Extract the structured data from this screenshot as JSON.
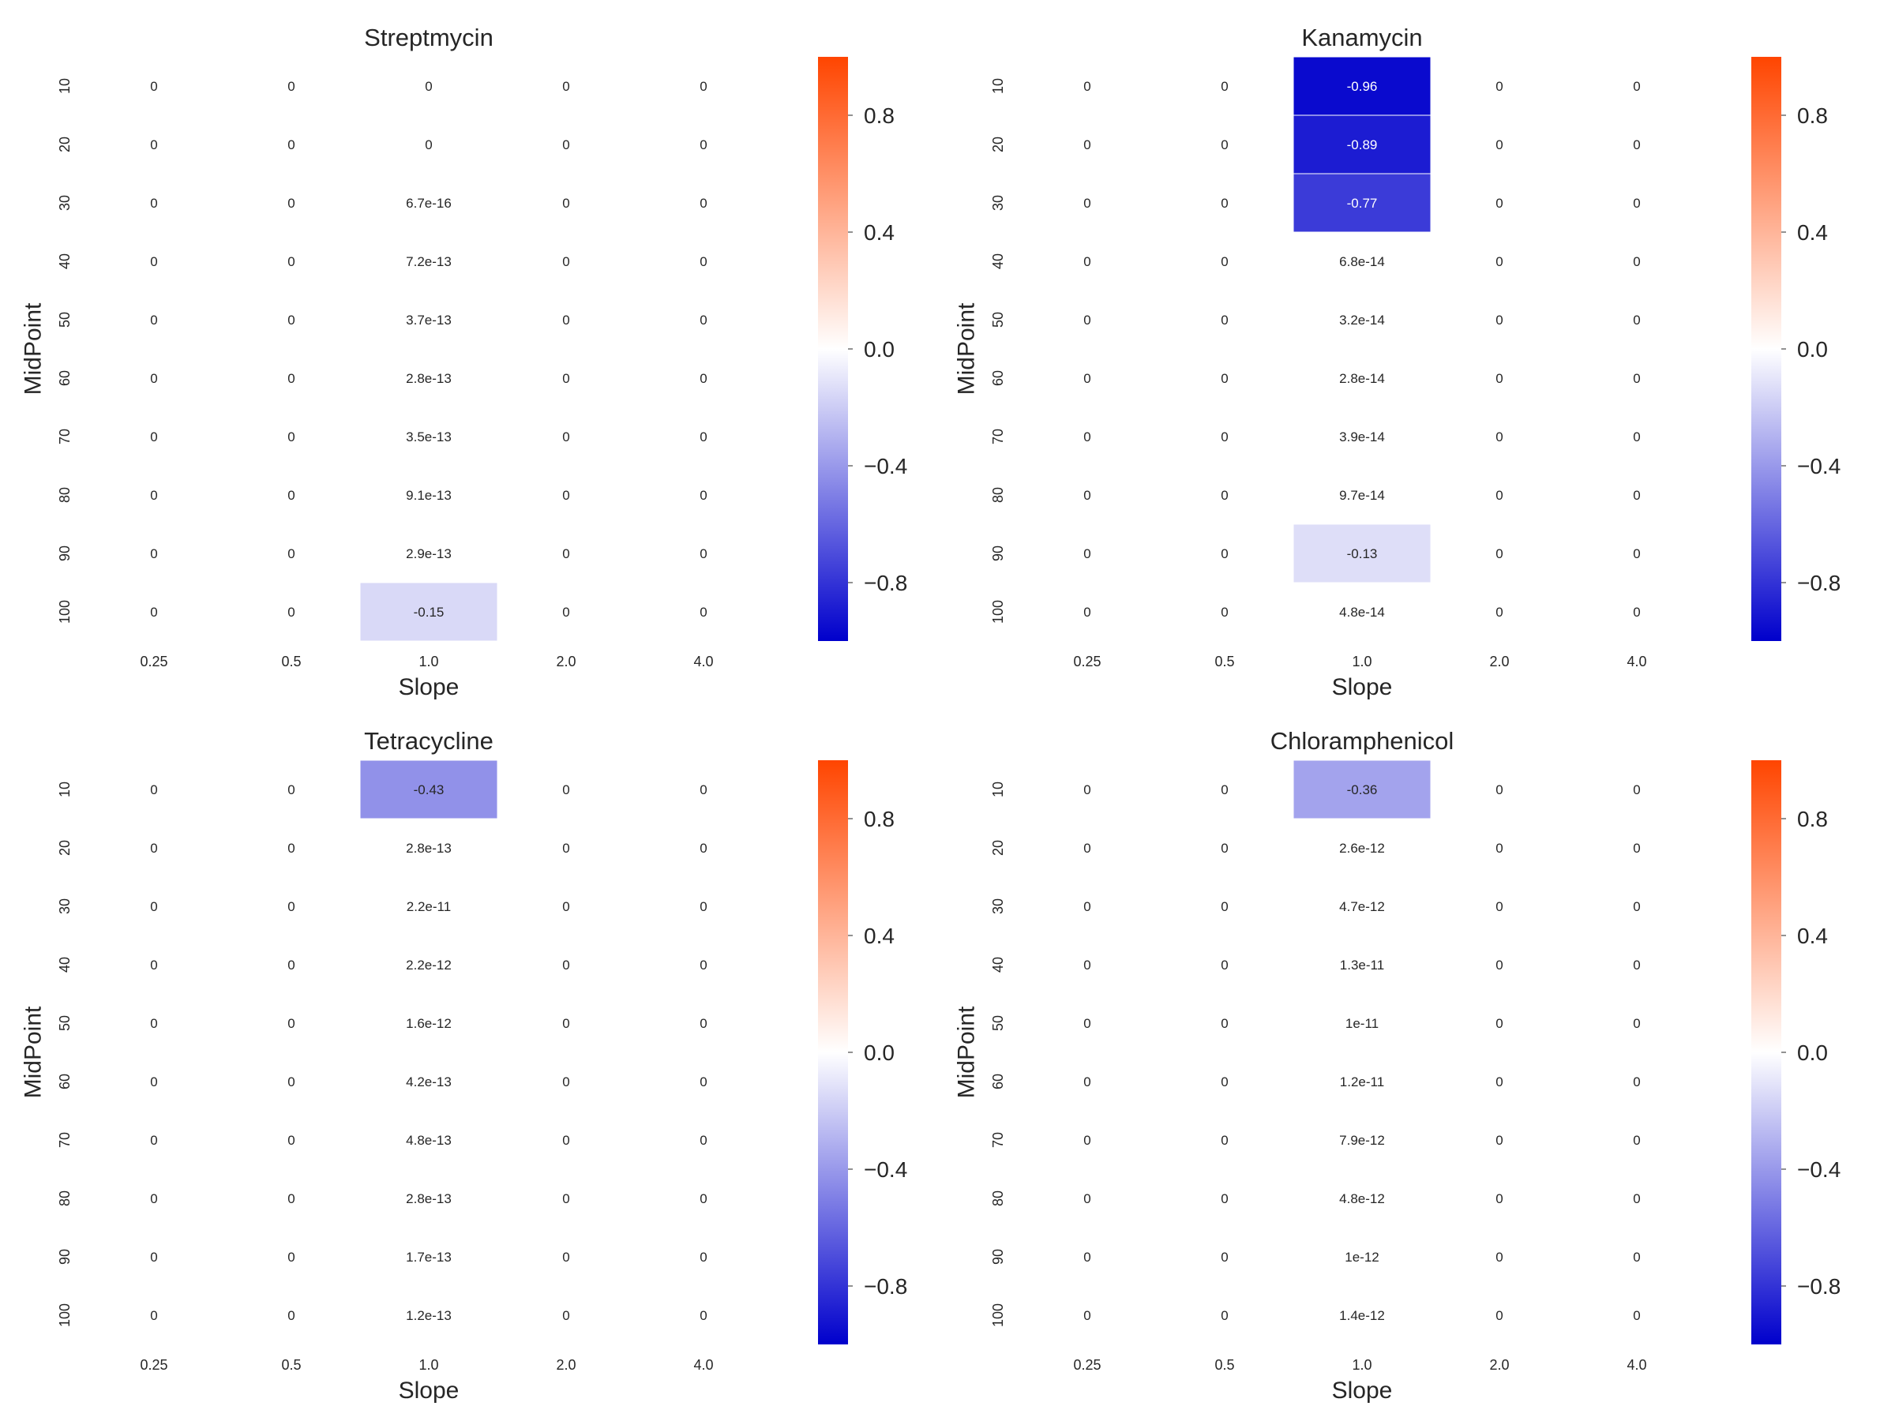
{
  "chart_data": [
    {
      "type": "heatmap",
      "title": "Streptmycin",
      "xlabel": "Slope",
      "ylabel": "MidPoint",
      "x_categories": [
        "0.25",
        "0.5",
        "1.0",
        "2.0",
        "4.0"
      ],
      "y_categories": [
        "10",
        "20",
        "30",
        "40",
        "50",
        "60",
        "70",
        "80",
        "90",
        "100"
      ],
      "values": [
        [
          0,
          0,
          0,
          0,
          0
        ],
        [
          0,
          0,
          0,
          0,
          0
        ],
        [
          0,
          0,
          6.7e-16,
          0,
          0
        ],
        [
          0,
          0,
          7.2e-13,
          0,
          0
        ],
        [
          0,
          0,
          3.7e-13,
          0,
          0
        ],
        [
          0,
          0,
          2.8e-13,
          0,
          0
        ],
        [
          0,
          0,
          3.5e-13,
          0,
          0
        ],
        [
          0,
          0,
          9.1e-13,
          0,
          0
        ],
        [
          0,
          0,
          2.9e-13,
          0,
          0
        ],
        [
          0,
          0,
          -0.15,
          0,
          0
        ]
      ],
      "annotations": [
        [
          "0",
          "0",
          "0",
          "0",
          "0"
        ],
        [
          "0",
          "0",
          "0",
          "0",
          "0"
        ],
        [
          "0",
          "0",
          "6.7e-16",
          "0",
          "0"
        ],
        [
          "0",
          "0",
          "7.2e-13",
          "0",
          "0"
        ],
        [
          "0",
          "0",
          "3.7e-13",
          "0",
          "0"
        ],
        [
          "0",
          "0",
          "2.8e-13",
          "0",
          "0"
        ],
        [
          "0",
          "0",
          "3.5e-13",
          "0",
          "0"
        ],
        [
          "0",
          "0",
          "9.1e-13",
          "0",
          "0"
        ],
        [
          "0",
          "0",
          "2.9e-13",
          "0",
          "0"
        ],
        [
          "0",
          "0",
          "-0.15",
          "0",
          "0"
        ]
      ],
      "colorbar": {
        "range": [
          -1,
          1
        ],
        "ticks": [
          "0.8",
          "0.4",
          "0.0",
          "−0.4",
          "−0.8"
        ]
      }
    },
    {
      "type": "heatmap",
      "title": "Kanamycin",
      "xlabel": "Slope",
      "ylabel": "MidPoint",
      "x_categories": [
        "0.25",
        "0.5",
        "1.0",
        "2.0",
        "4.0"
      ],
      "y_categories": [
        "10",
        "20",
        "30",
        "40",
        "50",
        "60",
        "70",
        "80",
        "90",
        "100"
      ],
      "values": [
        [
          0,
          0,
          -0.96,
          0,
          0
        ],
        [
          0,
          0,
          -0.89,
          0,
          0
        ],
        [
          0,
          0,
          -0.77,
          0,
          0
        ],
        [
          0,
          0,
          6.8e-14,
          0,
          0
        ],
        [
          0,
          0,
          3.2e-14,
          0,
          0
        ],
        [
          0,
          0,
          2.8e-14,
          0,
          0
        ],
        [
          0,
          0,
          3.9e-14,
          0,
          0
        ],
        [
          0,
          0,
          9.7e-14,
          0,
          0
        ],
        [
          0,
          0,
          -0.13,
          0,
          0
        ],
        [
          0,
          0,
          4.8e-14,
          0,
          0
        ]
      ],
      "annotations": [
        [
          "0",
          "0",
          "-0.96",
          "0",
          "0"
        ],
        [
          "0",
          "0",
          "-0.89",
          "0",
          "0"
        ],
        [
          "0",
          "0",
          "-0.77",
          "0",
          "0"
        ],
        [
          "0",
          "0",
          "6.8e-14",
          "0",
          "0"
        ],
        [
          "0",
          "0",
          "3.2e-14",
          "0",
          "0"
        ],
        [
          "0",
          "0",
          "2.8e-14",
          "0",
          "0"
        ],
        [
          "0",
          "0",
          "3.9e-14",
          "0",
          "0"
        ],
        [
          "0",
          "0",
          "9.7e-14",
          "0",
          "0"
        ],
        [
          "0",
          "0",
          "-0.13",
          "0",
          "0"
        ],
        [
          "0",
          "0",
          "4.8e-14",
          "0",
          "0"
        ]
      ],
      "colorbar": {
        "range": [
          -1,
          1
        ],
        "ticks": [
          "0.8",
          "0.4",
          "0.0",
          "−0.4",
          "−0.8"
        ]
      }
    },
    {
      "type": "heatmap",
      "title": "Tetracycline",
      "xlabel": "Slope",
      "ylabel": "MidPoint",
      "x_categories": [
        "0.25",
        "0.5",
        "1.0",
        "2.0",
        "4.0"
      ],
      "y_categories": [
        "10",
        "20",
        "30",
        "40",
        "50",
        "60",
        "70",
        "80",
        "90",
        "100"
      ],
      "values": [
        [
          0,
          0,
          -0.43,
          0,
          0
        ],
        [
          0,
          0,
          2.8e-13,
          0,
          0
        ],
        [
          0,
          0,
          2.2e-11,
          0,
          0
        ],
        [
          0,
          0,
          2.2e-12,
          0,
          0
        ],
        [
          0,
          0,
          1.6e-12,
          0,
          0
        ],
        [
          0,
          0,
          4.2e-13,
          0,
          0
        ],
        [
          0,
          0,
          4.8e-13,
          0,
          0
        ],
        [
          0,
          0,
          2.8e-13,
          0,
          0
        ],
        [
          0,
          0,
          1.7e-13,
          0,
          0
        ],
        [
          0,
          0,
          1.2e-13,
          0,
          0
        ]
      ],
      "annotations": [
        [
          "0",
          "0",
          "-0.43",
          "0",
          "0"
        ],
        [
          "0",
          "0",
          "2.8e-13",
          "0",
          "0"
        ],
        [
          "0",
          "0",
          "2.2e-11",
          "0",
          "0"
        ],
        [
          "0",
          "0",
          "2.2e-12",
          "0",
          "0"
        ],
        [
          "0",
          "0",
          "1.6e-12",
          "0",
          "0"
        ],
        [
          "0",
          "0",
          "4.2e-13",
          "0",
          "0"
        ],
        [
          "0",
          "0",
          "4.8e-13",
          "0",
          "0"
        ],
        [
          "0",
          "0",
          "2.8e-13",
          "0",
          "0"
        ],
        [
          "0",
          "0",
          "1.7e-13",
          "0",
          "0"
        ],
        [
          "0",
          "0",
          "1.2e-13",
          "0",
          "0"
        ]
      ],
      "colorbar": {
        "range": [
          -1,
          1
        ],
        "ticks": [
          "0.8",
          "0.4",
          "0.0",
          "−0.4",
          "−0.8"
        ]
      }
    },
    {
      "type": "heatmap",
      "title": "Chloramphenicol",
      "xlabel": "Slope",
      "ylabel": "MidPoint",
      "x_categories": [
        "0.25",
        "0.5",
        "1.0",
        "2.0",
        "4.0"
      ],
      "y_categories": [
        "10",
        "20",
        "30",
        "40",
        "50",
        "60",
        "70",
        "80",
        "90",
        "100"
      ],
      "values": [
        [
          0,
          0,
          -0.36,
          0,
          0
        ],
        [
          0,
          0,
          2.6e-12,
          0,
          0
        ],
        [
          0,
          0,
          4.7e-12,
          0,
          0
        ],
        [
          0,
          0,
          1.3e-11,
          0,
          0
        ],
        [
          0,
          0,
          1e-11,
          0,
          0
        ],
        [
          0,
          0,
          1.2e-11,
          0,
          0
        ],
        [
          0,
          0,
          7.9e-12,
          0,
          0
        ],
        [
          0,
          0,
          4.8e-12,
          0,
          0
        ],
        [
          0,
          0,
          1e-12,
          0,
          0
        ],
        [
          0,
          0,
          1.4e-12,
          0,
          0
        ]
      ],
      "annotations": [
        [
          "0",
          "0",
          "-0.36",
          "0",
          "0"
        ],
        [
          "0",
          "0",
          "2.6e-12",
          "0",
          "0"
        ],
        [
          "0",
          "0",
          "4.7e-12",
          "0",
          "0"
        ],
        [
          "0",
          "0",
          "1.3e-11",
          "0",
          "0"
        ],
        [
          "0",
          "0",
          "1e-11",
          "0",
          "0"
        ],
        [
          "0",
          "0",
          "1.2e-11",
          "0",
          "0"
        ],
        [
          "0",
          "0",
          "7.9e-12",
          "0",
          "0"
        ],
        [
          "0",
          "0",
          "4.8e-12",
          "0",
          "0"
        ],
        [
          "0",
          "0",
          "1e-12",
          "0",
          "0"
        ],
        [
          "0",
          "0",
          "1.4e-12",
          "0",
          "0"
        ]
      ],
      "colorbar": {
        "range": [
          -1,
          1
        ],
        "ticks": [
          "0.8",
          "0.4",
          "0.0",
          "−0.4",
          "−0.8"
        ]
      }
    }
  ],
  "colormap": {
    "negative": "#0000cc",
    "zero": "#ffffff",
    "positive": "#ff4500"
  }
}
